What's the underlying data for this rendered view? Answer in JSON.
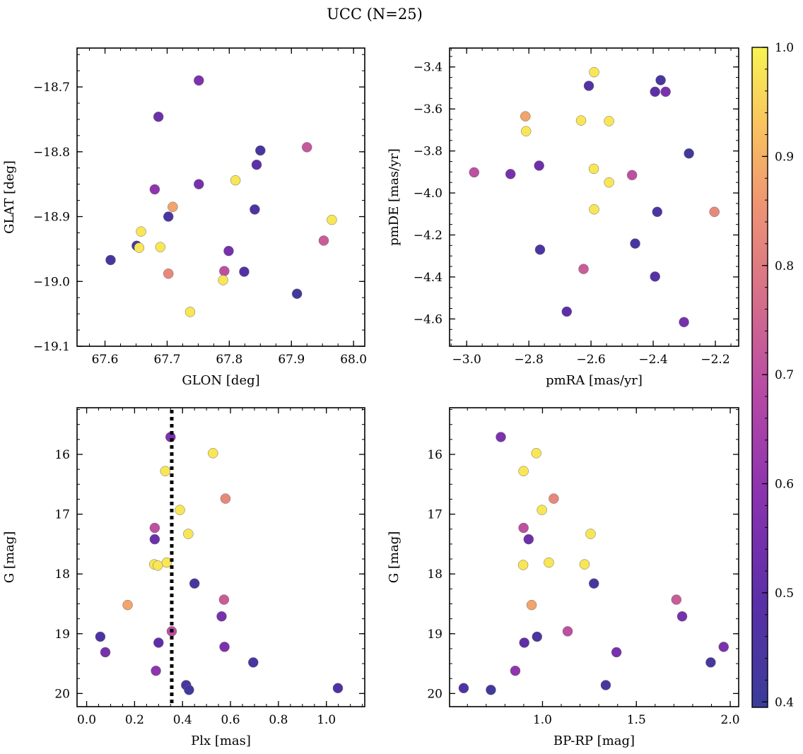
{
  "figure": {
    "title": "UCC (N=25)"
  },
  "colorbar": {
    "range": [
      0.395,
      1.0
    ],
    "ticks": [
      0.4,
      0.5,
      0.6,
      0.7,
      0.8,
      0.9,
      1.0
    ],
    "colormap": "plasma"
  },
  "chart_data": [
    {
      "type": "scatter",
      "id": "glon-glat",
      "xlabel": "GLON [deg]",
      "ylabel": "GLAT [deg]",
      "xlim": [
        67.555,
        68.018
      ],
      "ylim": [
        -19.1,
        -18.64
      ],
      "y_inverted": false,
      "xticks": [
        67.6,
        67.7,
        67.8,
        67.9,
        68.0
      ],
      "yticks": [
        -19.1,
        -19.0,
        -18.9,
        -18.8,
        -18.7
      ],
      "points": [
        {
          "x": 67.751,
          "y": -18.69,
          "c": 0.56
        },
        {
          "x": 67.686,
          "y": -18.746,
          "c": 0.53
        },
        {
          "x": 67.85,
          "y": -18.798,
          "c": 0.44
        },
        {
          "x": 67.925,
          "y": -18.793,
          "c": 0.72
        },
        {
          "x": 67.844,
          "y": -18.82,
          "c": 0.5
        },
        {
          "x": 67.81,
          "y": -18.844,
          "c": 0.98
        },
        {
          "x": 67.751,
          "y": -18.85,
          "c": 0.55
        },
        {
          "x": 67.68,
          "y": -18.858,
          "c": 0.6
        },
        {
          "x": 67.709,
          "y": -18.885,
          "c": 0.88
        },
        {
          "x": 67.841,
          "y": -18.889,
          "c": 0.46
        },
        {
          "x": 67.702,
          "y": -18.9,
          "c": 0.45
        },
        {
          "x": 67.965,
          "y": -18.905,
          "c": 0.98
        },
        {
          "x": 67.658,
          "y": -18.923,
          "c": 0.98
        },
        {
          "x": 67.952,
          "y": -18.937,
          "c": 0.73
        },
        {
          "x": 67.651,
          "y": -18.945,
          "c": 0.44
        },
        {
          "x": 67.655,
          "y": -18.948,
          "c": 0.98
        },
        {
          "x": 67.689,
          "y": -18.947,
          "c": 0.98
        },
        {
          "x": 67.799,
          "y": -18.953,
          "c": 0.55
        },
        {
          "x": 67.609,
          "y": -18.967,
          "c": 0.43
        },
        {
          "x": 67.702,
          "y": -18.988,
          "c": 0.83
        },
        {
          "x": 67.792,
          "y": -18.984,
          "c": 0.7
        },
        {
          "x": 67.824,
          "y": -18.985,
          "c": 0.47
        },
        {
          "x": 67.79,
          "y": -18.998,
          "c": 0.98
        },
        {
          "x": 67.909,
          "y": -19.019,
          "c": 0.42
        },
        {
          "x": 67.737,
          "y": -19.047,
          "c": 0.98
        }
      ]
    },
    {
      "type": "scatter",
      "id": "pmra-pmde",
      "xlabel": "pmRA [mas/yr]",
      "ylabel": "pmDE [mas/yr]",
      "xlim": [
        -3.055,
        -2.125
      ],
      "ylim": [
        -4.73,
        -3.31
      ],
      "y_inverted": false,
      "xticks": [
        -3.0,
        -2.8,
        -2.6,
        -2.4,
        -2.2
      ],
      "yticks": [
        -4.6,
        -4.4,
        -4.2,
        -4.0,
        -3.8,
        -3.6,
        -3.4
      ],
      "points": [
        {
          "x": -2.59,
          "y": -3.425,
          "c": 0.98
        },
        {
          "x": -2.376,
          "y": -3.463,
          "c": 0.44
        },
        {
          "x": -2.607,
          "y": -3.49,
          "c": 0.47
        },
        {
          "x": -2.394,
          "y": -3.518,
          "c": 0.5
        },
        {
          "x": -2.36,
          "y": -3.518,
          "c": 0.56
        },
        {
          "x": -2.811,
          "y": -3.635,
          "c": 0.88
        },
        {
          "x": -2.632,
          "y": -3.655,
          "c": 0.98
        },
        {
          "x": -2.542,
          "y": -3.658,
          "c": 0.98
        },
        {
          "x": -2.809,
          "y": -3.706,
          "c": 0.98
        },
        {
          "x": -2.285,
          "y": -3.812,
          "c": 0.42
        },
        {
          "x": -2.767,
          "y": -3.87,
          "c": 0.53
        },
        {
          "x": -2.591,
          "y": -3.885,
          "c": 0.98
        },
        {
          "x": -2.976,
          "y": -3.902,
          "c": 0.7
        },
        {
          "x": -2.859,
          "y": -3.91,
          "c": 0.55
        },
        {
          "x": -2.468,
          "y": -3.915,
          "c": 0.7
        },
        {
          "x": -2.542,
          "y": -3.95,
          "c": 0.98
        },
        {
          "x": -2.59,
          "y": -4.078,
          "c": 0.98
        },
        {
          "x": -2.387,
          "y": -4.09,
          "c": 0.45
        },
        {
          "x": -2.203,
          "y": -4.09,
          "c": 0.83
        },
        {
          "x": -2.458,
          "y": -4.241,
          "c": 0.44
        },
        {
          "x": -2.764,
          "y": -4.27,
          "c": 0.45
        },
        {
          "x": -2.624,
          "y": -4.362,
          "c": 0.73
        },
        {
          "x": -2.394,
          "y": -4.398,
          "c": 0.48
        },
        {
          "x": -2.678,
          "y": -4.565,
          "c": 0.5
        },
        {
          "x": -2.301,
          "y": -4.615,
          "c": 0.55
        }
      ]
    },
    {
      "type": "scatter",
      "id": "plx-g",
      "xlabel": "Plx [mas]",
      "ylabel": "G [mag]",
      "xlim": [
        -0.04,
        1.16
      ],
      "ylim": [
        20.22,
        15.22
      ],
      "y_inverted": true,
      "xticks": [
        0.0,
        0.2,
        0.4,
        0.6,
        0.8,
        1.0
      ],
      "yticks": [
        16,
        17,
        18,
        19,
        20
      ],
      "vline": {
        "x": 0.355,
        "style": "dotted",
        "color": "#000000"
      },
      "points": [
        {
          "x": 0.35,
          "y": 15.71,
          "c": 0.56
        },
        {
          "x": 0.527,
          "y": 15.98,
          "c": 0.98
        },
        {
          "x": 0.328,
          "y": 16.28,
          "c": 0.98
        },
        {
          "x": 0.579,
          "y": 16.74,
          "c": 0.83
        },
        {
          "x": 0.389,
          "y": 16.93,
          "c": 0.98
        },
        {
          "x": 0.284,
          "y": 17.23,
          "c": 0.7
        },
        {
          "x": 0.424,
          "y": 17.33,
          "c": 0.98
        },
        {
          "x": 0.284,
          "y": 17.42,
          "c": 0.53
        },
        {
          "x": 0.282,
          "y": 17.84,
          "c": 0.98
        },
        {
          "x": 0.297,
          "y": 17.86,
          "c": 0.98
        },
        {
          "x": 0.334,
          "y": 17.81,
          "c": 0.98
        },
        {
          "x": 0.45,
          "y": 18.16,
          "c": 0.43
        },
        {
          "x": 0.573,
          "y": 18.43,
          "c": 0.73
        },
        {
          "x": 0.171,
          "y": 18.52,
          "c": 0.88
        },
        {
          "x": 0.563,
          "y": 18.71,
          "c": 0.55
        },
        {
          "x": 0.355,
          "y": 18.96,
          "c": 0.7
        },
        {
          "x": 0.057,
          "y": 19.05,
          "c": 0.45
        },
        {
          "x": 0.3,
          "y": 19.15,
          "c": 0.5
        },
        {
          "x": 0.575,
          "y": 19.22,
          "c": 0.56
        },
        {
          "x": 0.078,
          "y": 19.31,
          "c": 0.55
        },
        {
          "x": 0.695,
          "y": 19.48,
          "c": 0.44
        },
        {
          "x": 0.289,
          "y": 19.62,
          "c": 0.6
        },
        {
          "x": 0.415,
          "y": 19.86,
          "c": 0.44
        },
        {
          "x": 0.427,
          "y": 19.94,
          "c": 0.42
        },
        {
          "x": 1.048,
          "y": 19.91,
          "c": 0.46
        }
      ]
    },
    {
      "type": "scatter",
      "id": "bprp-g",
      "xlabel": "BP-RP [mag]",
      "ylabel": "G [mag]",
      "xlim": [
        0.505,
        2.045
      ],
      "ylim": [
        20.22,
        15.22
      ],
      "y_inverted": true,
      "xticks": [
        1.0,
        1.5,
        2.0
      ],
      "yticks": [
        16,
        17,
        18,
        19,
        20
      ],
      "points": [
        {
          "x": 0.778,
          "y": 15.71,
          "c": 0.56
        },
        {
          "x": 0.967,
          "y": 15.98,
          "c": 0.98
        },
        {
          "x": 0.899,
          "y": 16.28,
          "c": 0.98
        },
        {
          "x": 1.06,
          "y": 16.74,
          "c": 0.83
        },
        {
          "x": 0.997,
          "y": 16.93,
          "c": 0.98
        },
        {
          "x": 0.899,
          "y": 17.23,
          "c": 0.7
        },
        {
          "x": 1.256,
          "y": 17.33,
          "c": 0.98
        },
        {
          "x": 0.926,
          "y": 17.42,
          "c": 0.53
        },
        {
          "x": 0.897,
          "y": 17.85,
          "c": 0.98
        },
        {
          "x": 1.034,
          "y": 17.81,
          "c": 0.98
        },
        {
          "x": 1.224,
          "y": 17.84,
          "c": 0.98
        },
        {
          "x": 1.274,
          "y": 18.16,
          "c": 0.43
        },
        {
          "x": 1.713,
          "y": 18.43,
          "c": 0.73
        },
        {
          "x": 0.942,
          "y": 18.52,
          "c": 0.88
        },
        {
          "x": 1.744,
          "y": 18.71,
          "c": 0.55
        },
        {
          "x": 1.134,
          "y": 18.96,
          "c": 0.7
        },
        {
          "x": 0.971,
          "y": 19.05,
          "c": 0.45
        },
        {
          "x": 0.903,
          "y": 19.15,
          "c": 0.5
        },
        {
          "x": 1.965,
          "y": 19.22,
          "c": 0.56
        },
        {
          "x": 1.394,
          "y": 19.31,
          "c": 0.55
        },
        {
          "x": 1.896,
          "y": 19.48,
          "c": 0.44
        },
        {
          "x": 0.855,
          "y": 19.62,
          "c": 0.6
        },
        {
          "x": 1.337,
          "y": 19.86,
          "c": 0.44
        },
        {
          "x": 0.725,
          "y": 19.94,
          "c": 0.42
        },
        {
          "x": 0.58,
          "y": 19.91,
          "c": 0.46
        }
      ]
    }
  ]
}
